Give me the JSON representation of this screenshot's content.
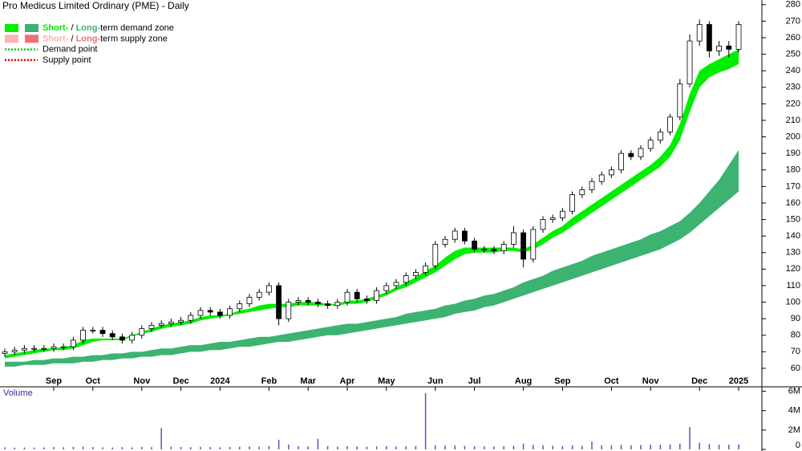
{
  "chart_data": {
    "type": "candlestick",
    "title": "Pro Medicus Limited Ordinary (PME) - Daily",
    "legend": [
      {
        "swatches": [
          "#00ee00",
          "#3cb371"
        ],
        "short": "Short-",
        "sep": " / ",
        "long": "Long-",
        "rest": "term demand zone"
      },
      {
        "swatches": [
          "#ffb3b3",
          "#f07070"
        ],
        "short": "Short-",
        "sep": " / ",
        "long": "Long-",
        "rest": "term supply zone"
      },
      {
        "line": "#00cc00",
        "label": "Demand point"
      },
      {
        "line": "#dd0000",
        "label": "Supply point"
      }
    ],
    "categories": [
      null,
      null,
      null,
      null,
      null,
      "Sep",
      null,
      null,
      null,
      "Oct",
      null,
      null,
      null,
      null,
      "Nov",
      null,
      null,
      null,
      "Dec",
      null,
      null,
      null,
      "2024",
      null,
      null,
      null,
      null,
      "Feb",
      null,
      null,
      null,
      "Mar",
      null,
      null,
      null,
      "Apr",
      null,
      null,
      null,
      "May",
      null,
      null,
      null,
      null,
      "Jun",
      null,
      null,
      null,
      "Jul",
      null,
      null,
      null,
      null,
      "Aug",
      null,
      null,
      null,
      "Sep",
      null,
      null,
      null,
      null,
      "Oct",
      null,
      null,
      null,
      "Nov",
      null,
      null,
      null,
      null,
      "Dec",
      null,
      null,
      null,
      "2025"
    ],
    "open": [
      69,
      70,
      71,
      72,
      72,
      72,
      73,
      73,
      77,
      83,
      83,
      81,
      79,
      77,
      80,
      84,
      86,
      87,
      88,
      89,
      92,
      95,
      94,
      92,
      96,
      99,
      103,
      106,
      110,
      90,
      100,
      101,
      100,
      99,
      98,
      100,
      106,
      102,
      101,
      107,
      110,
      112,
      116,
      118,
      122,
      135,
      138,
      143,
      137,
      132,
      132,
      131,
      135,
      142,
      126,
      144,
      150,
      151,
      155,
      165,
      168,
      173,
      177,
      180,
      190,
      188,
      193,
      198,
      203,
      212,
      232,
      258,
      268,
      252,
      255,
      253
    ],
    "high": [
      72,
      73,
      74,
      74,
      74,
      75,
      75,
      79,
      85,
      85,
      85,
      83,
      81,
      82,
      86,
      88,
      89,
      90,
      91,
      94,
      97,
      97,
      96,
      98,
      101,
      105,
      108,
      112,
      112,
      102,
      103,
      103,
      102,
      101,
      102,
      108,
      108,
      104,
      109,
      112,
      114,
      118,
      120,
      124,
      137,
      140,
      145,
      145,
      139,
      134,
      134,
      137,
      146,
      144,
      146,
      152,
      153,
      157,
      167,
      170,
      175,
      179,
      182,
      192,
      192,
      195,
      200,
      205,
      214,
      235,
      262,
      271,
      270,
      258,
      258,
      270
    ],
    "low": [
      67,
      68,
      69,
      70,
      70,
      70,
      71,
      71,
      75,
      81,
      79,
      77,
      75,
      75,
      78,
      82,
      84,
      85,
      86,
      87,
      90,
      92,
      90,
      90,
      94,
      97,
      101,
      104,
      86,
      88,
      98,
      98,
      97,
      96,
      96,
      98,
      100,
      99,
      99,
      105,
      108,
      110,
      114,
      116,
      120,
      133,
      136,
      135,
      130,
      130,
      129,
      129,
      133,
      121,
      124,
      142,
      148,
      149,
      153,
      163,
      166,
      171,
      175,
      178,
      186,
      186,
      191,
      196,
      201,
      210,
      230,
      255,
      248,
      249,
      248,
      251
    ],
    "close": [
      70,
      71,
      72,
      72,
      72,
      73,
      73,
      77,
      83,
      83,
      81,
      79,
      77,
      80,
      84,
      86,
      87,
      88,
      89,
      92,
      95,
      94,
      92,
      96,
      99,
      103,
      106,
      110,
      90,
      100,
      101,
      100,
      99,
      98,
      100,
      106,
      102,
      101,
      107,
      110,
      112,
      116,
      118,
      122,
      135,
      138,
      143,
      137,
      132,
      132,
      131,
      135,
      142,
      126,
      144,
      150,
      151,
      155,
      165,
      168,
      173,
      177,
      180,
      190,
      188,
      193,
      198,
      203,
      212,
      232,
      258,
      268,
      252,
      255,
      253,
      268
    ],
    "short_term_zone": {
      "color": "#00ee00",
      "upper": [
        68,
        69,
        70,
        71,
        72,
        72,
        73,
        74,
        77,
        78,
        78,
        78,
        78,
        80,
        82,
        84,
        86,
        87,
        88,
        89,
        91,
        92,
        92,
        93,
        95,
        96,
        98,
        99,
        99,
        99,
        100,
        100,
        100,
        99,
        99,
        101,
        101,
        102,
        104,
        106,
        109,
        112,
        115,
        119,
        122,
        127,
        131,
        133,
        133,
        133,
        133,
        133,
        133,
        132,
        135,
        139,
        143,
        146,
        151,
        155,
        159,
        163,
        167,
        171,
        175,
        179,
        183,
        188,
        195,
        208,
        226,
        240,
        244,
        247,
        250,
        253
      ],
      "lower": [
        66,
        67,
        68,
        69,
        70,
        71,
        71,
        72,
        74,
        76,
        77,
        77,
        77,
        79,
        81,
        82,
        84,
        85,
        86,
        87,
        89,
        90,
        91,
        92,
        93,
        94,
        95,
        96,
        97,
        97,
        98,
        98,
        98,
        98,
        98,
        99,
        99,
        100,
        102,
        104,
        107,
        109,
        112,
        115,
        118,
        122,
        126,
        129,
        130,
        130,
        130,
        131,
        131,
        130,
        132,
        135,
        139,
        142,
        146,
        150,
        154,
        158,
        162,
        166,
        170,
        174,
        178,
        182,
        188,
        198,
        215,
        230,
        236,
        239,
        241,
        244
      ]
    },
    "long_term_zone": {
      "color": "#3cb371",
      "upper": [
        64,
        64,
        64,
        65,
        65,
        66,
        66,
        67,
        67,
        68,
        68,
        69,
        69,
        70,
        70,
        71,
        72,
        72,
        73,
        74,
        74,
        75,
        76,
        76,
        77,
        78,
        79,
        79,
        80,
        81,
        82,
        83,
        84,
        85,
        86,
        87,
        87,
        88,
        89,
        90,
        91,
        93,
        94,
        95,
        96,
        98,
        99,
        101,
        102,
        104,
        105,
        107,
        109,
        112,
        114,
        116,
        119,
        121,
        123,
        125,
        128,
        130,
        132,
        134,
        136,
        138,
        141,
        143,
        146,
        149,
        154,
        160,
        167,
        174,
        183,
        192
      ],
      "lower": [
        61,
        61,
        62,
        62,
        62,
        63,
        63,
        63,
        64,
        64,
        65,
        65,
        66,
        66,
        67,
        67,
        68,
        68,
        69,
        70,
        70,
        71,
        71,
        72,
        73,
        73,
        74,
        75,
        76,
        76,
        77,
        78,
        79,
        80,
        80,
        81,
        82,
        83,
        84,
        85,
        86,
        87,
        88,
        89,
        90,
        91,
        93,
        94,
        95,
        97,
        98,
        100,
        102,
        104,
        106,
        108,
        110,
        112,
        114,
        116,
        118,
        120,
        122,
        124,
        126,
        128,
        130,
        132,
        135,
        138,
        142,
        147,
        152,
        157,
        162,
        167
      ]
    },
    "ylim": [
      48.8,
      282.8
    ],
    "yticks": [
      60,
      70,
      80,
      90,
      100,
      110,
      120,
      130,
      140,
      150,
      160,
      170,
      180,
      190,
      200,
      210,
      220,
      230,
      240,
      250,
      260,
      270,
      280
    ],
    "volume": {
      "label": "Volume",
      "color": "#5a50c8",
      "values": [
        220000,
        180000,
        200000,
        190000,
        210000,
        250000,
        230000,
        260000,
        300000,
        240000,
        220000,
        200000,
        230000,
        210000,
        260000,
        240000,
        2200000,
        300000,
        250000,
        230000,
        260000,
        240000,
        220000,
        250000,
        270000,
        300000,
        280000,
        350000,
        1000000,
        500000,
        320000,
        300000,
        1100000,
        350000,
        280000,
        330000,
        300000,
        290000,
        310000,
        340000,
        300000,
        320000,
        350000,
        5800000,
        420000,
        380000,
        400000,
        360000,
        330000,
        310000,
        300000,
        340000,
        380000,
        600000,
        450000,
        420000,
        380000,
        360000,
        400000,
        380000,
        800000,
        420000,
        400000,
        450000,
        430000,
        460000,
        500000,
        480000,
        520000,
        600000,
        2300000,
        700000,
        550000,
        500000,
        480000,
        520000
      ],
      "ylim": [
        0,
        6300000
      ],
      "yticks": [
        0,
        {
          "value": 2000000,
          "label": "2M"
        },
        {
          "value": 4000000,
          "label": "4M"
        },
        {
          "value": 6000000,
          "label": "6M"
        }
      ]
    }
  }
}
